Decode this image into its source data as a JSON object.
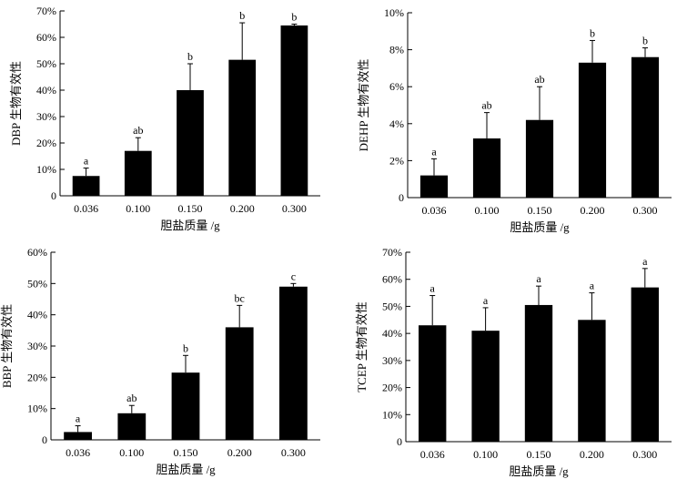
{
  "chart_data": [
    {
      "type": "bar",
      "categories": [
        "0.036",
        "0.100",
        "0.150",
        "0.200",
        "0.300"
      ],
      "values": [
        7.5,
        17,
        40,
        51.5,
        64.5
      ],
      "errors": [
        3,
        5,
        10,
        14,
        0.5
      ],
      "letters": [
        "a",
        "ab",
        "b",
        "b",
        "b"
      ],
      "xlabel": "胆盐质量 /g",
      "ylabel": "DBP 生物有效性",
      "ylim": [
        0,
        70
      ],
      "yticks": [
        0,
        10,
        20,
        30,
        40,
        50,
        60,
        70
      ],
      "ytick_labels": [
        "0",
        "10%",
        "20%",
        "30%",
        "40%",
        "50%",
        "60%",
        "70%"
      ],
      "grid": false
    },
    {
      "type": "bar",
      "categories": [
        "0.036",
        "0.100",
        "0.150",
        "0.200",
        "0.300"
      ],
      "values": [
        1.2,
        3.2,
        4.2,
        7.3,
        7.6
      ],
      "errors": [
        0.9,
        1.4,
        1.8,
        1.2,
        0.5
      ],
      "letters": [
        "a",
        "ab",
        "ab",
        "b",
        "b"
      ],
      "xlabel": "胆盐质量 /g",
      "ylabel": "DEHP 生物有效性",
      "ylim": [
        0,
        10
      ],
      "yticks": [
        0,
        2,
        4,
        6,
        8,
        10
      ],
      "ytick_labels": [
        "0",
        "2%",
        "4%",
        "6%",
        "8%",
        "10%"
      ],
      "grid": false
    },
    {
      "type": "bar",
      "categories": [
        "0.036",
        "0.100",
        "0.150",
        "0.200",
        "0.300"
      ],
      "values": [
        2.5,
        8.5,
        21.5,
        36,
        49
      ],
      "errors": [
        2,
        2.5,
        5.5,
        7,
        1
      ],
      "letters": [
        "a",
        "ab",
        "b",
        "bc",
        "c"
      ],
      "xlabel": "胆盐质量 /g",
      "ylabel": "BBP 生物有效性",
      "ylim": [
        0,
        60
      ],
      "yticks": [
        0,
        10,
        20,
        30,
        40,
        50,
        60
      ],
      "ytick_labels": [
        "0",
        "10%",
        "20%",
        "30%",
        "40%",
        "50%",
        "60%"
      ],
      "grid": false
    },
    {
      "type": "bar",
      "categories": [
        "0.036",
        "0.100",
        "0.150",
        "0.200",
        "0.300"
      ],
      "values": [
        43,
        41,
        50.5,
        45,
        57
      ],
      "errors": [
        11,
        8.5,
        7,
        10,
        7
      ],
      "letters": [
        "a",
        "a",
        "a",
        "a",
        "a"
      ],
      "xlabel": "胆盐质量 /g",
      "ylabel": "TCEP 生物有效性",
      "ylim": [
        0,
        70
      ],
      "yticks": [
        0,
        10,
        20,
        30,
        40,
        50,
        60,
        70
      ],
      "ytick_labels": [
        "0",
        "10%",
        "20%",
        "30%",
        "40%",
        "50%",
        "60%",
        "70%"
      ],
      "grid": false
    }
  ]
}
